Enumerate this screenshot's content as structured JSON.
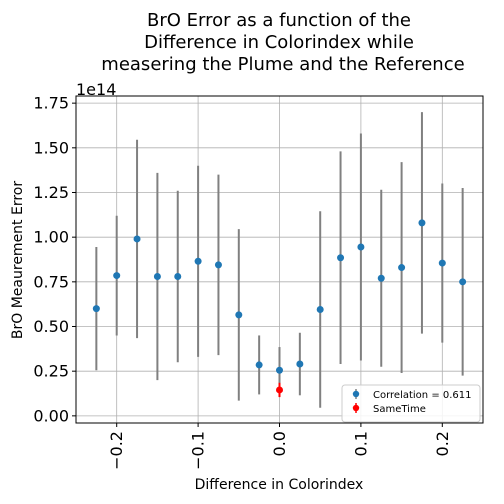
{
  "chart_data": {
    "type": "scatter",
    "title_lines": [
      "BrO Error as a function of the",
      "Difference in Colorindex while",
      "measering the Plume and the Reference"
    ],
    "xlabel": "Difference in Colorindex",
    "ylabel": "BrO Meaurement Error",
    "y_offset_label": "1e14",
    "xlim": [
      -0.25,
      0.25
    ],
    "ylim": [
      -0.04,
      1.79
    ],
    "x_ticks": [
      -0.2,
      -0.1,
      0.0,
      0.1,
      0.2
    ],
    "x_tick_labels": [
      "−0.2",
      "−0.1",
      "0.0",
      "0.1",
      "0.2"
    ],
    "y_ticks": [
      0.0,
      0.25,
      0.5,
      0.75,
      1.0,
      1.25,
      1.5,
      1.75
    ],
    "y_tick_labels": [
      "0.00",
      "0.25",
      "0.50",
      "0.75",
      "1.00",
      "1.25",
      "1.50",
      "1.75"
    ],
    "grid": true,
    "legend_position": "lower-right",
    "series": [
      {
        "name": "Correlation = 0.611",
        "color": "#1f77b4",
        "errorbar_color": "#808080",
        "x": [
          -0.225,
          -0.2,
          -0.175,
          -0.15,
          -0.125,
          -0.1,
          -0.075,
          -0.05,
          -0.025,
          0.0,
          0.025,
          0.05,
          0.075,
          0.1,
          0.125,
          0.15,
          0.175,
          0.2,
          0.225
        ],
        "y": [
          0.6,
          0.785,
          0.99,
          0.78,
          0.78,
          0.865,
          0.845,
          0.565,
          0.285,
          0.255,
          0.29,
          0.595,
          0.885,
          0.945,
          0.77,
          0.83,
          1.08,
          0.855,
          0.75
        ],
        "err": [
          0.345,
          0.335,
          0.555,
          0.58,
          0.48,
          0.535,
          0.505,
          0.48,
          0.165,
          0.13,
          0.175,
          0.55,
          0.595,
          0.635,
          0.495,
          0.59,
          0.62,
          0.445,
          0.525
        ]
      },
      {
        "name": "SameTime",
        "color": "#ff0000",
        "errorbar_color": "#ff0000",
        "x": [
          0.0
        ],
        "y": [
          0.145
        ],
        "err": [
          0.04
        ]
      }
    ]
  }
}
